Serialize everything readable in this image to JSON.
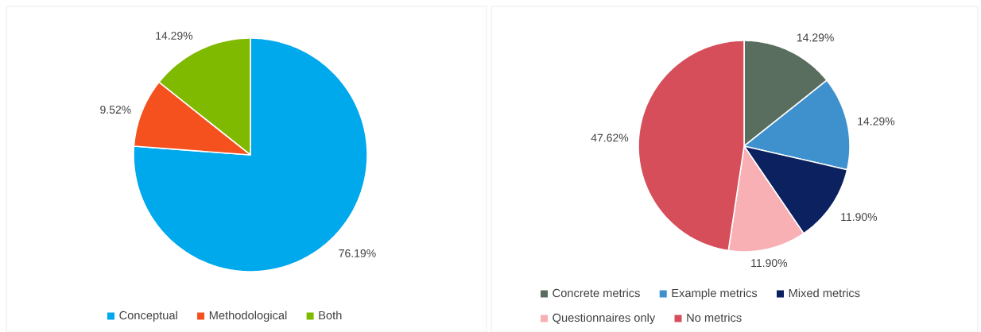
{
  "chart_data": [
    {
      "type": "pie",
      "categories": [
        "Conceptual",
        "Methodological",
        "Both"
      ],
      "values": [
        76.19,
        9.52,
        14.29
      ],
      "colors": [
        "#00a8ec",
        "#f4511e",
        "#7fba00"
      ],
      "value_labels": [
        "76.19%",
        "9.52%",
        "14.29%"
      ],
      "legend": "bottom"
    },
    {
      "type": "pie",
      "categories": [
        "Concrete metrics",
        "Example metrics",
        "Mixed metrics",
        "Questionnaires only",
        "No metrics"
      ],
      "values": [
        14.29,
        14.29,
        11.9,
        11.9,
        47.62
      ],
      "colors": [
        "#5a6e60",
        "#3e91cc",
        "#0b2160",
        "#f8b0b5",
        "#d54e5a"
      ],
      "value_labels": [
        "14.29%",
        "14.29%",
        "11.90%",
        "11.90%",
        "47.62%"
      ],
      "legend": "bottom"
    }
  ]
}
